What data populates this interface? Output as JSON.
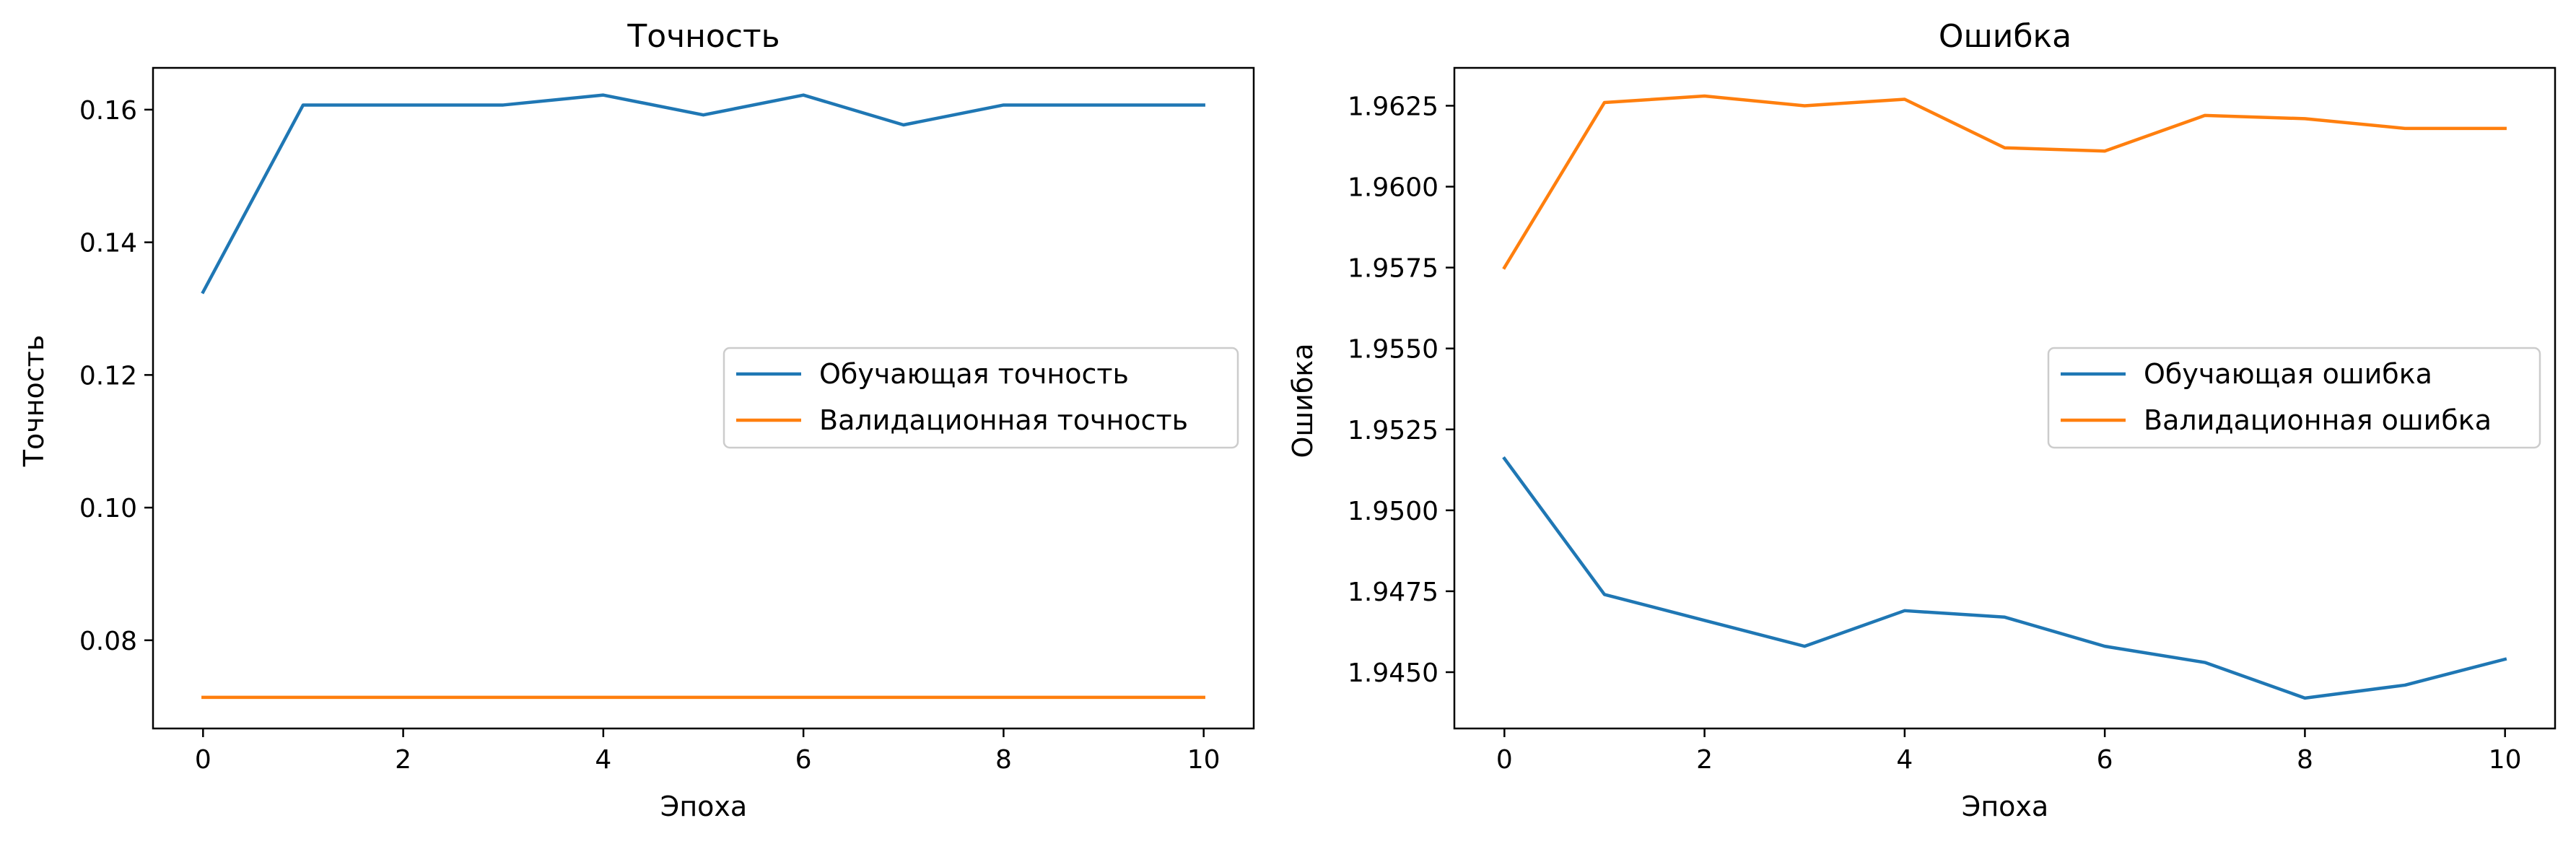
{
  "chart_data": [
    {
      "type": "line",
      "title": "Точность",
      "xlabel": "Эпоха",
      "ylabel": "Точность",
      "x": [
        0,
        1,
        2,
        3,
        4,
        5,
        6,
        7,
        8,
        9,
        10
      ],
      "xlim": [
        -0.5,
        10.5
      ],
      "ylim": [
        0.0667,
        0.1663
      ],
      "xticks": [
        0,
        2,
        4,
        6,
        8,
        10
      ],
      "xtick_labels": [
        "0",
        "2",
        "4",
        "6",
        "8",
        "10"
      ],
      "yticks": [
        0.08,
        0.1,
        0.12,
        0.14,
        0.16
      ],
      "ytick_labels": [
        "0.08",
        "0.10",
        "0.12",
        "0.14",
        "0.16"
      ],
      "legend_position": "center right",
      "grid": false,
      "series": [
        {
          "name": "Обучающая точность",
          "color": "#1f77b4",
          "values": [
            0.1325,
            0.1607,
            0.1607,
            0.1607,
            0.1622,
            0.1592,
            0.1622,
            0.1577,
            0.1607,
            0.1607,
            0.1607
          ]
        },
        {
          "name": "Валидационная точность",
          "color": "#ff7f0e",
          "values": [
            0.0714,
            0.0714,
            0.0714,
            0.0714,
            0.0714,
            0.0714,
            0.0714,
            0.0714,
            0.0714,
            0.0714,
            0.0714
          ]
        }
      ]
    },
    {
      "type": "line",
      "title": "Ошибка",
      "xlabel": "Эпоха",
      "ylabel": "Ошибка",
      "x": [
        0,
        1,
        2,
        3,
        4,
        5,
        6,
        7,
        8,
        9,
        10
      ],
      "xlim": [
        -0.5,
        10.5
      ],
      "ylim": [
        1.94326,
        1.96367
      ],
      "xticks": [
        0,
        2,
        4,
        6,
        8,
        10
      ],
      "xtick_labels": [
        "0",
        "2",
        "4",
        "6",
        "8",
        "10"
      ],
      "yticks": [
        1.945,
        1.9475,
        1.95,
        1.9525,
        1.955,
        1.9575,
        1.96,
        1.9625
      ],
      "ytick_labels": [
        "1.9450",
        "1.9475",
        "1.9500",
        "1.9525",
        "1.9550",
        "1.9575",
        "1.9600",
        "1.9625"
      ],
      "legend_position": "center right",
      "grid": false,
      "series": [
        {
          "name": "Обучающая ошибка",
          "color": "#1f77b4",
          "values": [
            1.9516,
            1.9474,
            1.9466,
            1.9458,
            1.9469,
            1.9467,
            1.9458,
            1.9453,
            1.9442,
            1.9446,
            1.9454
          ]
        },
        {
          "name": "Валидационная ошибка",
          "color": "#ff7f0e",
          "values": [
            1.9575,
            1.9626,
            1.9628,
            1.9625,
            1.9627,
            1.9612,
            1.9611,
            1.9622,
            1.9621,
            1.9618,
            1.9618
          ]
        }
      ]
    }
  ]
}
